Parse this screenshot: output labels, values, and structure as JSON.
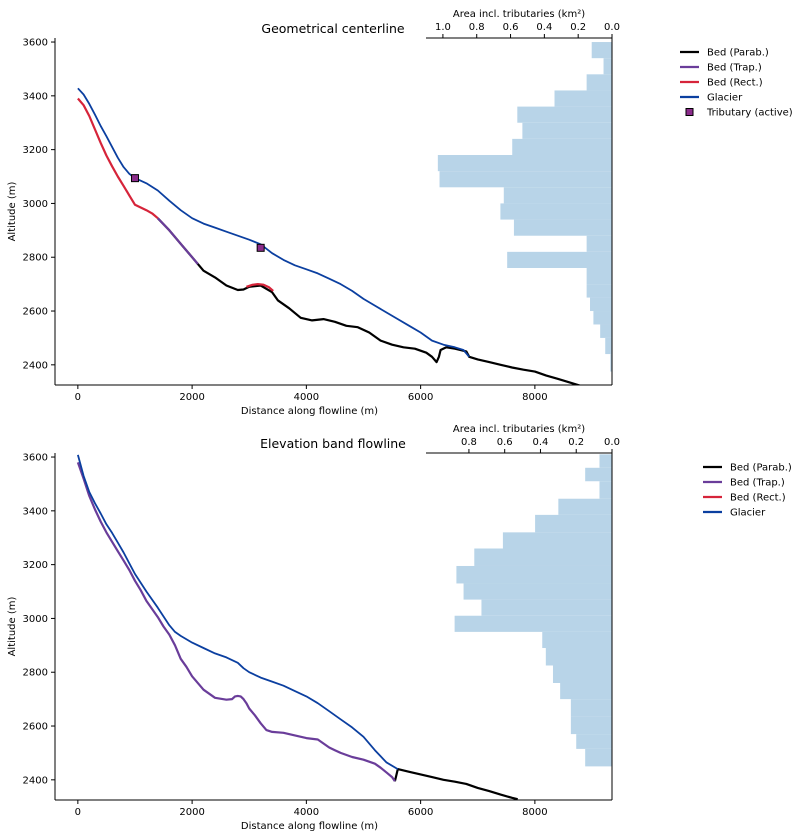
{
  "chart_data": [
    {
      "type": "line",
      "title": "Geometrical centerline",
      "xlabel": "Distance along flowline (m)",
      "ylabel": "Altitude (m)",
      "xlim": [
        -400,
        9350
      ],
      "ylim": [
        2325,
        3615
      ],
      "xticks": [
        "0",
        "2000",
        "4000",
        "6000",
        "8000"
      ],
      "xtick_values": [
        0,
        2000,
        4000,
        6000,
        8000
      ],
      "yticks": [
        "2400",
        "2600",
        "2800",
        "3000",
        "3200",
        "3400",
        "3600"
      ],
      "ytick_values": [
        2400,
        2600,
        2800,
        3000,
        3200,
        3400,
        3600
      ],
      "hist": {
        "xlabel": "Area incl. tributaries (km²)",
        "ticks": [
          "1.0",
          "0.8",
          "0.6",
          "0.4",
          "0.2",
          "0.0"
        ],
        "tick_values": [
          1.0,
          0.8,
          0.6,
          0.4,
          0.2,
          0.0
        ],
        "xlim": [
          1.1,
          0.0
        ],
        "bins": [
          [
            2375,
            2440,
            0.01
          ],
          [
            2440,
            2500,
            0.04
          ],
          [
            2500,
            2550,
            0.07
          ],
          [
            2550,
            2600,
            0.11
          ],
          [
            2600,
            2650,
            0.13
          ],
          [
            2650,
            2700,
            0.15
          ],
          [
            2700,
            2760,
            0.15
          ],
          [
            2760,
            2820,
            0.62
          ],
          [
            2820,
            2880,
            0.15
          ],
          [
            2880,
            2940,
            0.58
          ],
          [
            2940,
            3000,
            0.66
          ],
          [
            3000,
            3060,
            0.64
          ],
          [
            3060,
            3120,
            1.02
          ],
          [
            3120,
            3180,
            1.03
          ],
          [
            3180,
            3240,
            0.59
          ],
          [
            3240,
            3300,
            0.53
          ],
          [
            3300,
            3360,
            0.56
          ],
          [
            3360,
            3420,
            0.34
          ],
          [
            3420,
            3480,
            0.15
          ],
          [
            3480,
            3540,
            0.05
          ],
          [
            3540,
            3600,
            0.12
          ]
        ],
        "color": "#b8d4e8"
      },
      "series": [
        {
          "name": "Bed (Parab.)",
          "color": "#000000",
          "x": [
            1400,
            1600,
            1800,
            2000,
            2200,
            2400,
            2600,
            2800,
            2900,
            3000,
            3200,
            3400,
            3500,
            3700,
            3900,
            4100,
            4300,
            4500,
            4700,
            4900,
            5100,
            5300,
            5500,
            5700,
            5900,
            6100,
            6200,
            6280,
            6320,
            6350,
            6450,
            6600,
            6800,
            6850,
            7000,
            7200,
            7400,
            7600,
            7800,
            8000,
            8200,
            8400,
            8600,
            8800,
            8950
          ],
          "y": [
            2945,
            2900,
            2850,
            2800,
            2750,
            2725,
            2695,
            2678,
            2680,
            2690,
            2695,
            2670,
            2640,
            2610,
            2575,
            2565,
            2570,
            2560,
            2545,
            2540,
            2520,
            2490,
            2475,
            2465,
            2460,
            2445,
            2430,
            2410,
            2430,
            2455,
            2465,
            2460,
            2450,
            2430,
            2420,
            2410,
            2400,
            2390,
            2382,
            2375,
            2360,
            2348,
            2335,
            2322,
            2315
          ]
        },
        {
          "name": "Bed (Trap.)",
          "color": "#6a3d9a",
          "x": [
            1400,
            1600,
            1800,
            2000,
            2100
          ],
          "y": [
            2945,
            2900,
            2850,
            2800,
            2775
          ]
        },
        {
          "name": "Bed (Rect.)",
          "color": "#d6243a",
          "x": [
            0,
            100,
            200,
            300,
            400,
            500,
            600,
            700,
            800,
            900,
            1000,
            1100,
            1200,
            1300,
            1400
          ],
          "y": [
            3390,
            3365,
            3325,
            3275,
            3225,
            3178,
            3138,
            3100,
            3065,
            3030,
            2995,
            2985,
            2975,
            2963,
            2945
          ],
          "x2": [
            2950,
            3050,
            3150,
            3250,
            3350,
            3420
          ],
          "y2": [
            2690,
            2697,
            2700,
            2698,
            2688,
            2675
          ]
        },
        {
          "name": "Glacier",
          "color": "#0b3fa0",
          "x": [
            0,
            100,
            200,
            300,
            400,
            500,
            600,
            700,
            800,
            900,
            1000,
            1200,
            1400,
            1600,
            1800,
            2000,
            2200,
            2400,
            2600,
            2800,
            3000,
            3200,
            3400,
            3600,
            3800,
            4000,
            4200,
            4400,
            4600,
            4800,
            5000,
            5200,
            5400,
            5600,
            5800,
            6000,
            6200,
            6400,
            6600,
            6750,
            6850
          ],
          "y": [
            3428,
            3405,
            3370,
            3330,
            3288,
            3250,
            3210,
            3170,
            3135,
            3110,
            3094,
            3075,
            3048,
            3010,
            2975,
            2945,
            2925,
            2910,
            2895,
            2880,
            2865,
            2848,
            2815,
            2790,
            2770,
            2755,
            2740,
            2720,
            2700,
            2675,
            2645,
            2620,
            2595,
            2570,
            2545,
            2520,
            2490,
            2475,
            2465,
            2455,
            2430
          ]
        }
      ],
      "markers": {
        "name": "Tributary (active)",
        "color": "#8b2c8b",
        "x": [
          1000,
          3200
        ],
        "y": [
          3094,
          2835
        ]
      },
      "legend": [
        "Bed (Parab.)",
        "Bed (Trap.)",
        "Bed (Rect.)",
        "Glacier",
        "Tributary (active)"
      ],
      "legend_position": "outside-right"
    },
    {
      "type": "line",
      "title": "Elevation band flowline",
      "xlabel": "Distance along flowline (m)",
      "ylabel": "Altitude (m)",
      "xlim": [
        -400,
        9350
      ],
      "ylim": [
        2325,
        3615
      ],
      "xticks": [
        "0",
        "2000",
        "4000",
        "6000",
        "8000"
      ],
      "xtick_values": [
        0,
        2000,
        4000,
        6000,
        8000
      ],
      "yticks": [
        "2400",
        "2600",
        "2800",
        "3000",
        "3200",
        "3400",
        "3600"
      ],
      "ytick_values": [
        2400,
        2600,
        2800,
        3000,
        3200,
        3400,
        3600
      ],
      "hist": {
        "xlabel": "Area incl. tributaries (km²)",
        "ticks": [
          "0.8",
          "0.6",
          "0.4",
          "0.2",
          "0.0"
        ],
        "tick_values": [
          0.8,
          0.6,
          0.4,
          0.2,
          0.0
        ],
        "xlim": [
          1.04,
          0.0
        ],
        "bins": [
          [
            2450,
            2515,
            0.15
          ],
          [
            2515,
            2570,
            0.2
          ],
          [
            2570,
            2635,
            0.23
          ],
          [
            2635,
            2700,
            0.23
          ],
          [
            2700,
            2760,
            0.29
          ],
          [
            2760,
            2825,
            0.33
          ],
          [
            2825,
            2890,
            0.37
          ],
          [
            2890,
            2950,
            0.39
          ],
          [
            2950,
            3010,
            0.88
          ],
          [
            3010,
            3070,
            0.73
          ],
          [
            3070,
            3130,
            0.83
          ],
          [
            3130,
            3195,
            0.87
          ],
          [
            3195,
            3260,
            0.77
          ],
          [
            3260,
            3320,
            0.61
          ],
          [
            3320,
            3385,
            0.43
          ],
          [
            3385,
            3445,
            0.3
          ],
          [
            3445,
            3510,
            0.07
          ],
          [
            3510,
            3560,
            0.15
          ],
          [
            3560,
            3610,
            0.07
          ]
        ],
        "color": "#b8d4e8"
      },
      "series": [
        {
          "name": "Bed (Parab.)",
          "color": "#000000",
          "x": [
            5550,
            5600,
            5800,
            6000,
            6200,
            6400,
            6600,
            6800,
            7000,
            7200,
            7400,
            7600,
            7700
          ],
          "y": [
            2395,
            2440,
            2430,
            2420,
            2410,
            2400,
            2393,
            2385,
            2370,
            2358,
            2345,
            2333,
            2328
          ]
        },
        {
          "name": "Bed (Trap.)",
          "color": "#6a3d9a",
          "x": [
            0,
            100,
            200,
            300,
            400,
            500,
            600,
            700,
            800,
            900,
            1000,
            1100,
            1200,
            1300,
            1400,
            1500,
            1600,
            1700,
            1800,
            1900,
            2000,
            2200,
            2400,
            2600,
            2700,
            2750,
            2800,
            2850,
            2900,
            2950,
            3000,
            3100,
            3200,
            3300,
            3400,
            3600,
            3800,
            4000,
            4200,
            4300,
            4400,
            4500,
            4600,
            4800,
            5000,
            5200,
            5300,
            5400,
            5500,
            5550
          ],
          "y": [
            3580,
            3520,
            3455,
            3405,
            3360,
            3320,
            3285,
            3250,
            3215,
            3180,
            3140,
            3105,
            3065,
            3035,
            3005,
            2970,
            2940,
            2900,
            2850,
            2820,
            2785,
            2735,
            2705,
            2698,
            2700,
            2710,
            2712,
            2710,
            2700,
            2685,
            2665,
            2640,
            2610,
            2585,
            2578,
            2575,
            2565,
            2555,
            2550,
            2535,
            2520,
            2510,
            2500,
            2485,
            2475,
            2460,
            2445,
            2428,
            2410,
            2395
          ]
        },
        {
          "name": "Bed (Rect.)",
          "color": "#d6243a",
          "x": [],
          "y": []
        },
        {
          "name": "Glacier",
          "color": "#0b3fa0",
          "x": [
            0,
            100,
            200,
            300,
            400,
            500,
            600,
            700,
            800,
            900,
            1000,
            1200,
            1400,
            1600,
            1700,
            1800,
            2000,
            2200,
            2400,
            2600,
            2800,
            2900,
            3000,
            3200,
            3400,
            3600,
            3800,
            4000,
            4200,
            4400,
            4600,
            4800,
            5000,
            5200,
            5400,
            5600
          ],
          "y": [
            3608,
            3530,
            3470,
            3428,
            3390,
            3350,
            3318,
            3282,
            3245,
            3205,
            3165,
            3100,
            3040,
            2975,
            2950,
            2935,
            2910,
            2890,
            2870,
            2855,
            2835,
            2815,
            2800,
            2780,
            2765,
            2750,
            2730,
            2710,
            2685,
            2655,
            2625,
            2595,
            2560,
            2510,
            2465,
            2440
          ]
        }
      ],
      "legend": [
        "Bed (Parab.)",
        "Bed (Trap.)",
        "Bed (Rect.)",
        "Glacier"
      ],
      "legend_position": "outside-right"
    }
  ]
}
